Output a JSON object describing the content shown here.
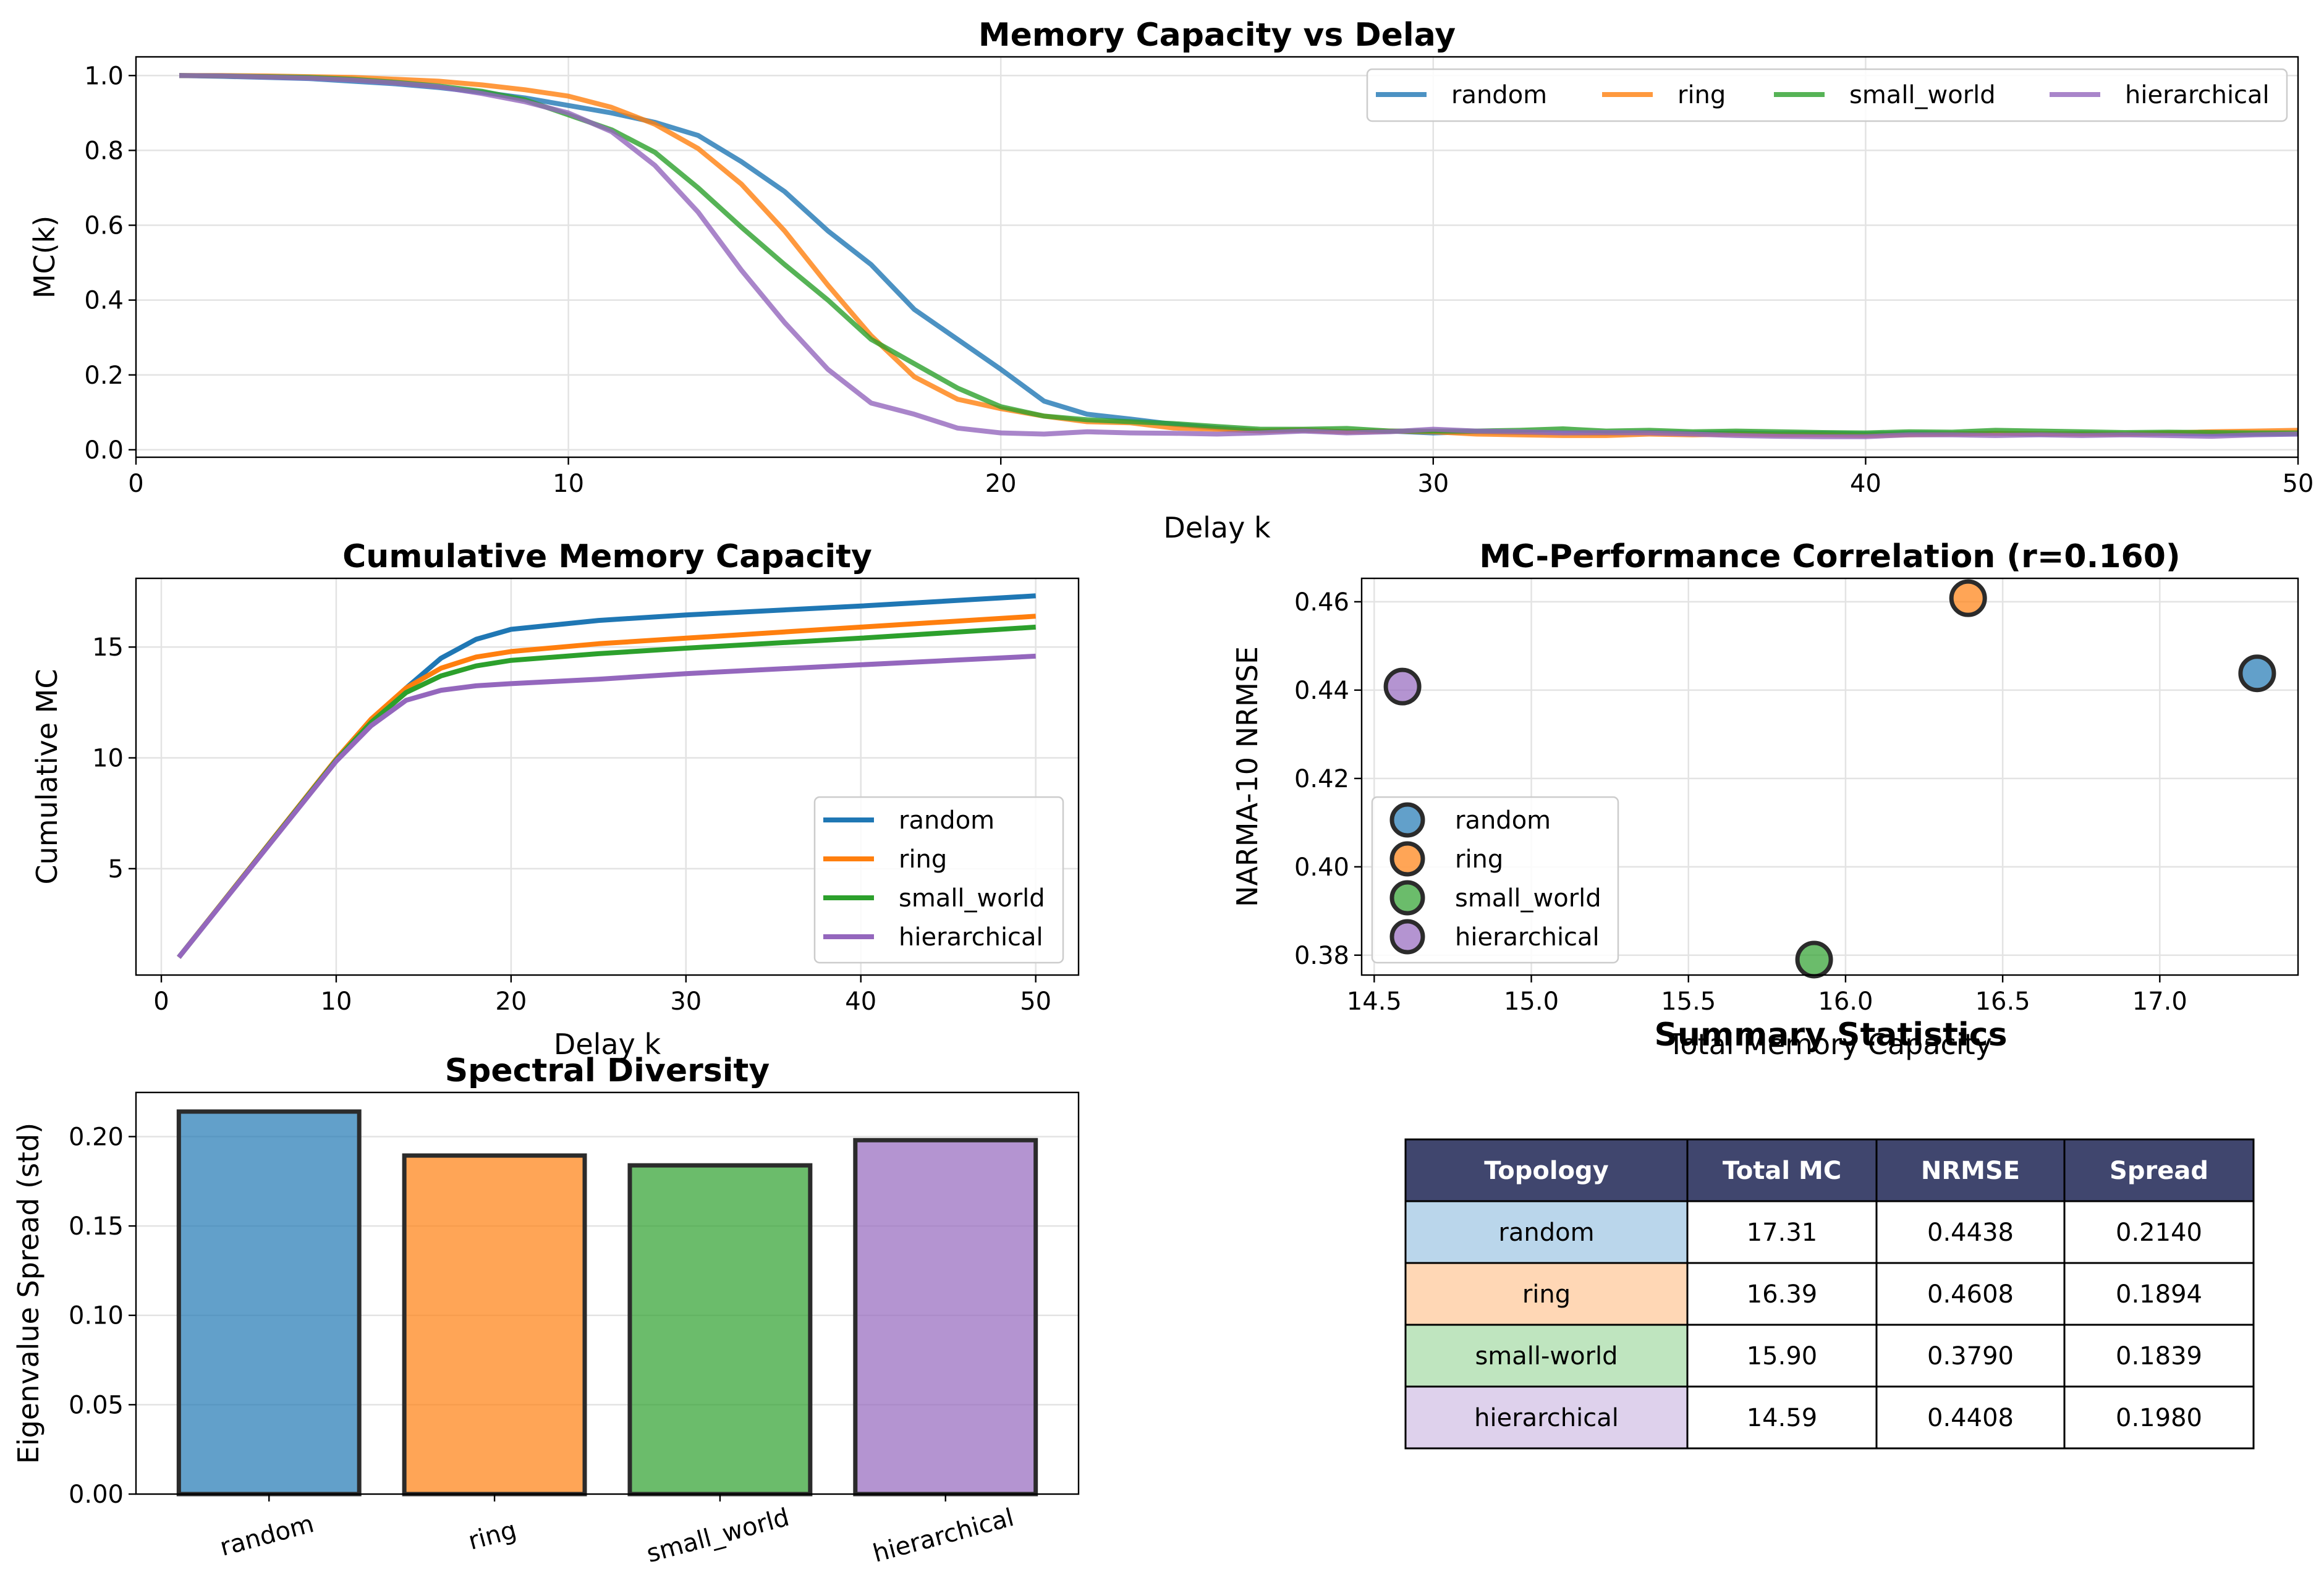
{
  "colors": {
    "random": "#1f77b4",
    "ring": "#ff7f0e",
    "small_world": "#2ca02c",
    "hierarchical": "#9467bd",
    "table_header": "#40466e",
    "grid": "#e6e6e6"
  },
  "table": {
    "title": "Summary Statistics",
    "headers": [
      "Topology",
      "Total MC",
      "NRMSE",
      "Spread"
    ],
    "rows": [
      [
        "random",
        "17.31",
        "0.4438",
        "0.2140"
      ],
      [
        "ring",
        "16.39",
        "0.4608",
        "0.1894"
      ],
      [
        "small-world",
        "15.90",
        "0.3790",
        "0.1839"
      ],
      [
        "hierarchical",
        "14.59",
        "0.4408",
        "0.1980"
      ]
    ],
    "row_colors": [
      "#bad6eb",
      "#ffd7b5",
      "#bfe5bf",
      "#ded1ec"
    ]
  },
  "chart_data": [
    {
      "type": "line",
      "title": "Memory Capacity vs Delay",
      "xlabel": "Delay k",
      "ylabel": "MC(k)",
      "xlim": [
        0,
        50
      ],
      "ylim": [
        -0.02,
        1.05
      ],
      "xticks": [
        0,
        10,
        20,
        30,
        40,
        50
      ],
      "yticks": [
        0.0,
        0.2,
        0.4,
        0.6,
        0.8,
        1.0
      ],
      "grid": true,
      "legend": "top-right",
      "x": [
        1,
        2,
        3,
        4,
        5,
        6,
        7,
        8,
        9,
        10,
        11,
        12,
        13,
        14,
        15,
        16,
        17,
        18,
        19,
        20,
        21,
        22,
        23,
        24,
        25,
        26,
        27,
        28,
        29,
        30,
        31,
        32,
        33,
        34,
        35,
        36,
        37,
        38,
        39,
        40,
        41,
        42,
        43,
        44,
        45,
        46,
        47,
        48,
        49,
        50
      ],
      "series": [
        {
          "name": "random",
          "values": [
            1.0,
            0.998,
            0.995,
            0.992,
            0.985,
            0.978,
            0.968,
            0.955,
            0.94,
            0.92,
            0.9,
            0.875,
            0.84,
            0.77,
            0.69,
            0.585,
            0.495,
            0.375,
            0.295,
            0.215,
            0.13,
            0.095,
            0.082,
            0.068,
            0.058,
            0.05,
            0.052,
            0.048,
            0.05,
            0.045,
            0.048,
            0.046,
            0.045,
            0.044,
            0.046,
            0.044,
            0.045,
            0.043,
            0.044,
            0.042,
            0.044,
            0.043,
            0.044,
            0.042,
            0.043,
            0.042,
            0.043,
            0.042,
            0.042,
            0.042
          ]
        },
        {
          "name": "ring",
          "values": [
            1.0,
            1.0,
            0.999,
            0.997,
            0.995,
            0.99,
            0.985,
            0.975,
            0.962,
            0.945,
            0.915,
            0.87,
            0.805,
            0.71,
            0.585,
            0.44,
            0.305,
            0.195,
            0.135,
            0.11,
            0.09,
            0.075,
            0.072,
            0.058,
            0.055,
            0.05,
            0.053,
            0.048,
            0.05,
            0.048,
            0.042,
            0.04,
            0.038,
            0.038,
            0.042,
            0.04,
            0.042,
            0.04,
            0.04,
            0.038,
            0.04,
            0.042,
            0.044,
            0.043,
            0.042,
            0.042,
            0.045,
            0.048,
            0.05,
            0.052
          ]
        },
        {
          "name": "small_world",
          "values": [
            1.0,
            0.999,
            0.997,
            0.995,
            0.99,
            0.982,
            0.972,
            0.958,
            0.935,
            0.895,
            0.855,
            0.795,
            0.7,
            0.595,
            0.495,
            0.4,
            0.295,
            0.23,
            0.165,
            0.115,
            0.09,
            0.08,
            0.075,
            0.07,
            0.062,
            0.055,
            0.055,
            0.057,
            0.05,
            0.05,
            0.05,
            0.052,
            0.056,
            0.05,
            0.052,
            0.048,
            0.05,
            0.048,
            0.046,
            0.045,
            0.048,
            0.047,
            0.052,
            0.05,
            0.048,
            0.046,
            0.047,
            0.046,
            0.045,
            0.045
          ]
        },
        {
          "name": "hierarchical",
          "values": [
            1.0,
            0.999,
            0.996,
            0.993,
            0.988,
            0.98,
            0.97,
            0.952,
            0.93,
            0.9,
            0.85,
            0.76,
            0.635,
            0.48,
            0.34,
            0.215,
            0.125,
            0.095,
            0.058,
            0.045,
            0.042,
            0.048,
            0.045,
            0.044,
            0.042,
            0.045,
            0.05,
            0.045,
            0.048,
            0.055,
            0.05,
            0.048,
            0.045,
            0.046,
            0.045,
            0.042,
            0.038,
            0.036,
            0.035,
            0.035,
            0.04,
            0.04,
            0.038,
            0.04,
            0.038,
            0.04,
            0.038,
            0.036,
            0.04,
            0.042
          ]
        }
      ]
    },
    {
      "type": "line",
      "title": "Cumulative Memory Capacity",
      "xlabel": "Delay k",
      "ylabel": "Cumulative MC",
      "xlim": [
        -1.45,
        52.45
      ],
      "ylim": [
        0.2,
        18.1
      ],
      "xticks": [
        0,
        10,
        20,
        30,
        40,
        50
      ],
      "yticks": [
        5,
        10,
        15
      ],
      "grid": true,
      "legend": "lower-right",
      "x": [
        1,
        10,
        12,
        14,
        16,
        18,
        20,
        25,
        30,
        40,
        50
      ],
      "series": [
        {
          "name": "random",
          "values": [
            1.0,
            9.9,
            11.65,
            13.15,
            14.5,
            15.35,
            15.8,
            16.2,
            16.45,
            16.85,
            17.31
          ]
        },
        {
          "name": "ring",
          "values": [
            1.0,
            9.95,
            11.75,
            13.15,
            14.05,
            14.55,
            14.8,
            15.15,
            15.4,
            15.9,
            16.39
          ]
        },
        {
          "name": "small_world",
          "values": [
            1.0,
            9.9,
            11.6,
            12.95,
            13.7,
            14.15,
            14.4,
            14.7,
            14.95,
            15.4,
            15.9
          ]
        },
        {
          "name": "hierarchical",
          "values": [
            1.0,
            9.85,
            11.45,
            12.6,
            13.05,
            13.25,
            13.35,
            13.55,
            13.8,
            14.2,
            14.59
          ]
        }
      ]
    },
    {
      "type": "scatter",
      "title": "MC-Performance Correlation (r=0.160)",
      "xlabel": "Total Memory Capacity",
      "ylabel": "NARMA-10 NRMSE",
      "xlim": [
        14.46,
        17.44
      ],
      "ylim": [
        0.3755,
        0.4653
      ],
      "xticks": [
        14.5,
        15.0,
        15.5,
        16.0,
        16.5,
        17.0
      ],
      "yticks": [
        0.38,
        0.4,
        0.42,
        0.44,
        0.46
      ],
      "grid": true,
      "legend": "lower-left",
      "series": [
        {
          "name": "random",
          "x": [
            17.31
          ],
          "y": [
            0.4438
          ]
        },
        {
          "name": "ring",
          "x": [
            16.39
          ],
          "y": [
            0.4608
          ]
        },
        {
          "name": "small_world",
          "x": [
            15.9
          ],
          "y": [
            0.379
          ]
        },
        {
          "name": "hierarchical",
          "x": [
            14.59
          ],
          "y": [
            0.4408
          ]
        }
      ]
    },
    {
      "type": "bar",
      "title": "Spectral Diversity",
      "xlabel": "",
      "ylabel": "Eigenvalue Spread (std)",
      "categories": [
        "random",
        "ring",
        "small_world",
        "hierarchical"
      ],
      "values": [
        0.214,
        0.1894,
        0.1839,
        0.198
      ],
      "ylim": [
        0,
        0.2247
      ],
      "yticks": [
        0.0,
        0.05,
        0.1,
        0.15,
        0.2
      ],
      "grid": true
    }
  ]
}
